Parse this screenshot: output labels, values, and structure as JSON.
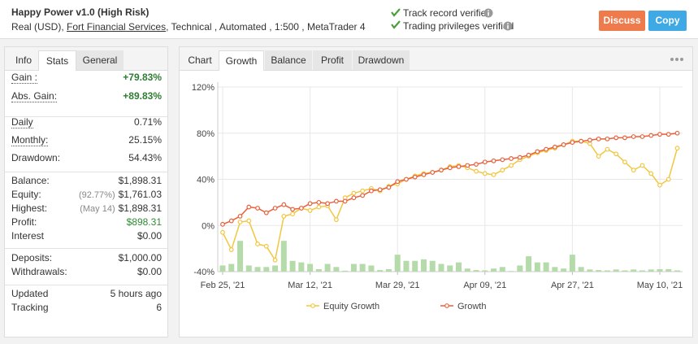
{
  "header": {
    "title": "Happy Power v1.0 (High Risk)",
    "account_prefix": "Real (USD),",
    "broker": "Fort Financial Services",
    "account_suffix": ", Technical , Automated , 1:500 , MetaTrader 4",
    "verified": [
      "Track record verified",
      "Trading privileges verified"
    ],
    "buttons": [
      "Discuss",
      "Copy"
    ]
  },
  "left_tabs": [
    "Info",
    "Stats",
    "General"
  ],
  "stats": [
    [
      {
        "label": "Gain :",
        "value": "+79.83%",
        "color": "#2e7d32"
      },
      {
        "label": "Abs. Gain:",
        "value": "+89.83%",
        "color": "#2e7d32"
      }
    ],
    [
      {
        "label": "Daily",
        "value": "0.71%"
      },
      {
        "label": "Monthly:",
        "value": "25.15%"
      },
      {
        "label": "Drawdown:",
        "value": "54.43%"
      }
    ],
    [
      {
        "label": "Balance:",
        "value": "$1,898.31"
      },
      {
        "label": "Equity:",
        "note": "(92.77%)",
        "value": "$1,761.03"
      },
      {
        "label": "Highest:",
        "note": "(May 14)",
        "value": "$1,898.31"
      },
      {
        "label": "Profit:",
        "value": "$898.31",
        "color": "#2e8b34"
      },
      {
        "label": "Interest",
        "value": "$0.00"
      }
    ],
    [
      {
        "label": "Deposits:",
        "value": "$1,000.00"
      },
      {
        "label": "Withdrawals:",
        "value": "$0.00"
      }
    ],
    [
      {
        "label": "Updated",
        "value": "5 hours ago"
      },
      {
        "label": "Tracking",
        "value": "6"
      }
    ]
  ],
  "chart_tabs": [
    "Chart",
    "Growth",
    "Balance",
    "Profit",
    "Drawdown"
  ],
  "chart_data": {
    "type": "line",
    "categories": [
      "Feb 25, '21",
      null,
      null,
      null,
      null,
      null,
      null,
      null,
      null,
      null,
      "Mar 12, '21",
      null,
      null,
      null,
      null,
      null,
      null,
      null,
      null,
      null,
      "Mar 29, '21",
      null,
      null,
      null,
      null,
      null,
      null,
      null,
      null,
      null,
      "Apr 09, '21",
      null,
      null,
      null,
      null,
      null,
      null,
      null,
      null,
      null,
      "Apr 27, '21",
      null,
      null,
      null,
      null,
      null,
      null,
      null,
      null,
      null,
      "May 10, '21",
      null,
      null
    ],
    "ylim": [
      -40,
      120
    ],
    "yticks": [
      {
        "value": -40,
        "label": "-40%"
      },
      {
        "value": 0,
        "label": "0%"
      },
      {
        "value": 40,
        "label": "40%"
      },
      {
        "value": 80,
        "label": "80%"
      },
      {
        "value": 120,
        "label": "120%"
      }
    ],
    "y2lim": [
      0,
      60
    ],
    "grid": true,
    "series": [
      {
        "name": "Equity Growth",
        "color": "#f2c641",
        "values": [
          -6,
          -21,
          3,
          4,
          -16,
          -18,
          -30,
          8,
          10,
          15,
          13,
          16,
          17,
          5,
          24,
          28,
          30,
          32,
          30,
          34,
          36,
          40,
          43,
          45,
          46,
          48,
          51,
          52,
          50,
          47,
          45,
          44,
          48,
          52,
          57,
          60,
          63,
          65,
          67,
          70,
          73,
          73,
          71,
          60,
          66,
          62,
          55,
          48,
          52,
          45,
          35,
          40,
          67
        ]
      },
      {
        "name": "Growth",
        "color": "#e8603c",
        "values": [
          1,
          4,
          8,
          16,
          15,
          11,
          15,
          18,
          14,
          15,
          19,
          20,
          19,
          21,
          21,
          24,
          26,
          30,
          31,
          33,
          38,
          40,
          42,
          44,
          46,
          48,
          50,
          51,
          52,
          53,
          55,
          56,
          57,
          58,
          59,
          61,
          64,
          66,
          68,
          70,
          72,
          73,
          74,
          75,
          75,
          76,
          76,
          77,
          77,
          78,
          79,
          79,
          80
        ]
      },
      {
        "type": "bar",
        "axis": "y2",
        "color": "#b5dbaa",
        "values": [
          2,
          2.5,
          10,
          2,
          1.5,
          1.5,
          2,
          10,
          3.5,
          3,
          2.5,
          0.8,
          2.5,
          1.5,
          0.3,
          2.5,
          2.5,
          2,
          0.5,
          0.8,
          5.5,
          3.5,
          3.5,
          4,
          3.5,
          2.5,
          2,
          3,
          1,
          0.5,
          0.4,
          1,
          1.5,
          0.2,
          2,
          5,
          3,
          3,
          1.5,
          1,
          5.5,
          1.5,
          0.7,
          0.5,
          0.4,
          0.7,
          0.4,
          0.7,
          0.4,
          0.7,
          0.8,
          0.8,
          0.4
        ]
      }
    ]
  }
}
